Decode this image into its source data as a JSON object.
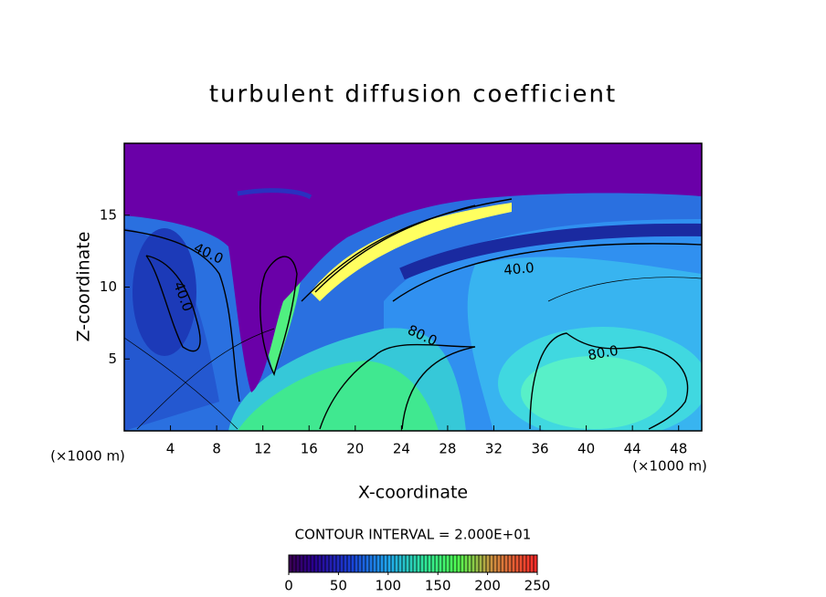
{
  "chart_data": {
    "type": "contour",
    "title": "turbulent diffusion coefficient",
    "xlabel": "X-coordinate",
    "ylabel": "Z-coordinate",
    "x_unit_labels": [
      "(×1000 m)",
      "(×1000 m)"
    ],
    "xlim": [
      0,
      50
    ],
    "xticks": [
      4,
      8,
      12,
      16,
      20,
      24,
      28,
      32,
      36,
      40,
      44,
      48
    ],
    "ylim": [
      0,
      20
    ],
    "yticks": [
      5,
      10,
      15
    ],
    "contour_labels": [
      "40.0",
      "40.0",
      "40.0",
      "80.0",
      "80.0"
    ],
    "contour_interval": "CONTOUR INTERVAL = 2.000E+01",
    "colorbar": {
      "clim": [
        0,
        250
      ],
      "ticks": [
        0,
        50,
        100,
        150,
        200,
        250
      ]
    }
  }
}
